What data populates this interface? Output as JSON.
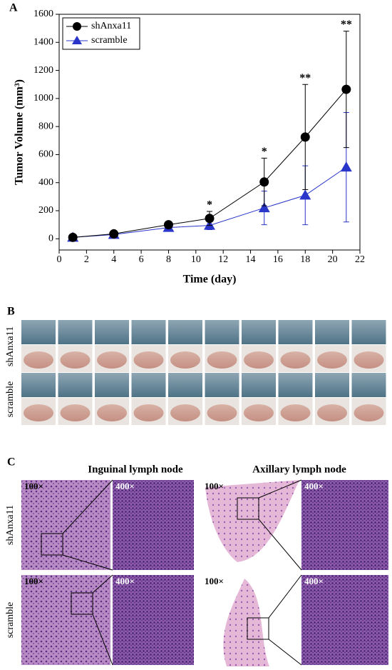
{
  "chart_data": {
    "type": "line",
    "panel_label": "A",
    "xlabel": "Time (day)",
    "ylabel": "Tumor Volume (mm³)",
    "x": [
      1,
      4,
      8,
      11,
      15,
      18,
      21
    ],
    "series": [
      {
        "name": "shAnxa11",
        "color": "#000000",
        "marker": "circle",
        "values": [
          10,
          35,
          100,
          145,
          405,
          725,
          1065
        ],
        "errors": [
          15,
          10,
          15,
          50,
          170,
          375,
          415
        ]
      },
      {
        "name": "scramble",
        "color": "#2a35c9",
        "marker": "triangle",
        "values": [
          10,
          30,
          80,
          95,
          220,
          310,
          510
        ],
        "errors": [
          20,
          15,
          20,
          30,
          120,
          210,
          390
        ]
      }
    ],
    "annotations": [
      {
        "x": 11,
        "label": "*"
      },
      {
        "x": 15,
        "label": "*"
      },
      {
        "x": 18,
        "label": "**"
      },
      {
        "x": 21,
        "label": "**"
      }
    ],
    "xlim": [
      0,
      22
    ],
    "xticks": [
      0,
      2,
      4,
      6,
      8,
      10,
      12,
      14,
      16,
      18,
      20,
      22
    ],
    "ylim": [
      -80,
      1600
    ],
    "yticks": [
      0,
      200,
      400,
      600,
      800,
      1000,
      1200,
      1400,
      1600
    ],
    "grid": false,
    "legend": "upper-left"
  },
  "panel_b": {
    "label": "B",
    "rows": [
      "shAnxa11",
      "scramble"
    ]
  },
  "panel_c": {
    "label": "C",
    "columns": [
      "Inguinal lymph node",
      "Axillary lymph node"
    ],
    "rows": [
      "shAnxa11",
      "scramble"
    ],
    "magnifications": [
      "100×",
      "400×"
    ]
  }
}
